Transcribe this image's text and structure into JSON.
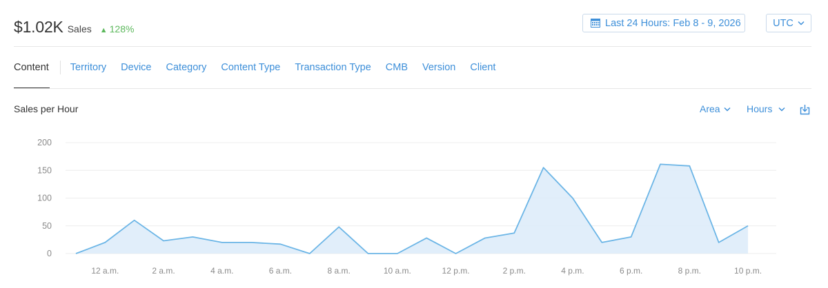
{
  "summary": {
    "amount": "$1.02K",
    "label": "Sales",
    "delta_arrow": "▲",
    "delta": "128%",
    "delta_color": "#5cb85c"
  },
  "date_range": {
    "label": "Last 24 Hours: Feb 8 - 9, 2026",
    "icon": "calendar-icon"
  },
  "timezone": {
    "label": "UTC",
    "icon": "chevron-down-icon"
  },
  "tabs": [
    {
      "label": "Content",
      "active": true
    },
    {
      "label": "Territory"
    },
    {
      "label": "Device"
    },
    {
      "label": "Category"
    },
    {
      "label": "Content Type"
    },
    {
      "label": "Transaction Type"
    },
    {
      "label": "CMB"
    },
    {
      "label": "Version"
    },
    {
      "label": "Client"
    }
  ],
  "chart_header": {
    "title": "Sales per Hour",
    "chart_type_label": "Area",
    "interval_label": "Hours",
    "download_icon": "download-icon"
  },
  "colors": {
    "accent": "#3d8fd9",
    "series_line": "#6bb5e6",
    "series_fill": "#dcebf9"
  },
  "chart_data": {
    "type": "area",
    "title": "Sales per Hour",
    "xlabel": "",
    "ylabel": "",
    "ylim": [
      0,
      200
    ],
    "y_ticks": [
      0,
      50,
      100,
      150,
      200
    ],
    "x_tick_labels": [
      "12 a.m.",
      "2 a.m.",
      "4 a.m.",
      "6 a.m.",
      "8 a.m.",
      "10 a.m.",
      "12 p.m.",
      "2 p.m.",
      "4 p.m.",
      "6 p.m.",
      "8 p.m.",
      "10 p.m."
    ],
    "grid": true,
    "legend": "none",
    "series": [
      {
        "values": [
          0,
          20,
          60,
          23,
          30,
          20,
          20,
          17,
          0,
          48,
          0,
          0,
          28,
          0,
          28,
          37,
          155,
          100,
          20,
          30,
          161,
          158,
          20,
          50
        ]
      }
    ]
  }
}
